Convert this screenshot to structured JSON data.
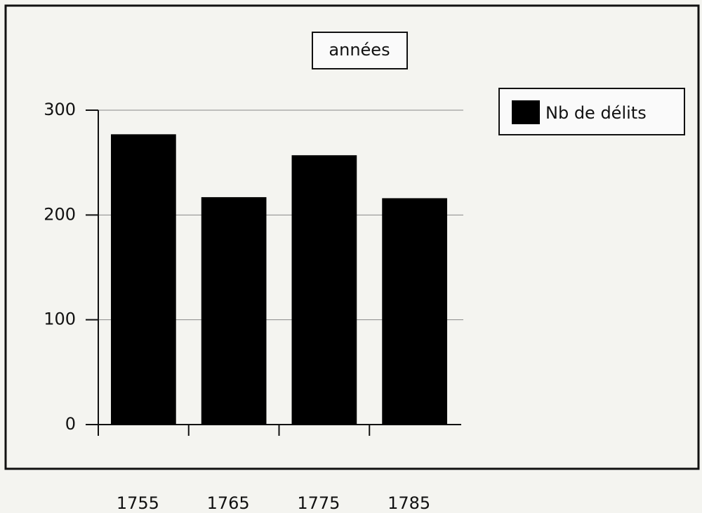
{
  "chart_data": {
    "type": "bar",
    "title": "années",
    "categories": [
      "1755",
      "1765",
      "1775",
      "1785"
    ],
    "series": [
      {
        "name": "Nb de délits",
        "color": "#000000",
        "values": [
          277,
          217,
          257,
          216
        ]
      }
    ],
    "ylim": [
      0,
      300
    ],
    "yticks": [
      0,
      100,
      200,
      300
    ],
    "grid": true,
    "legend": "right"
  }
}
